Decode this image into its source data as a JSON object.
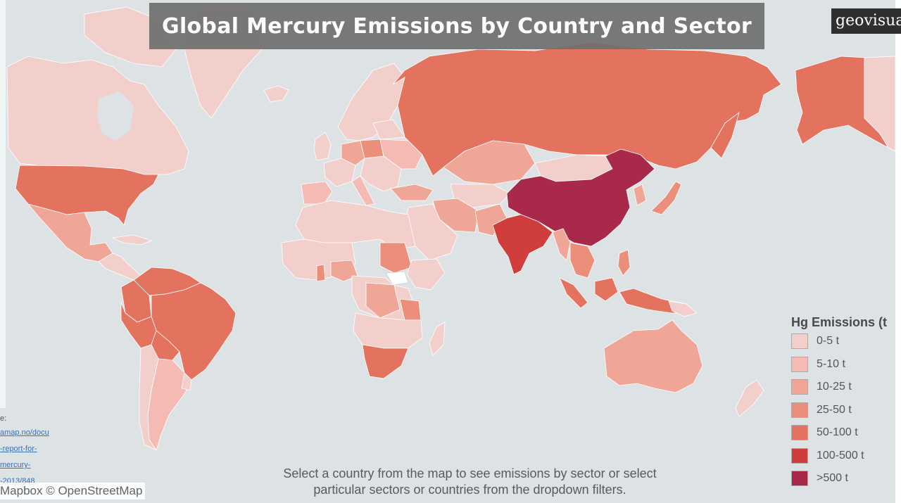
{
  "title": "Global Mercury Emissions by Country and Sector",
  "logo_text": "geovisua",
  "legend": {
    "title": "Hg Emissions (t",
    "items": [
      {
        "label": "0-5 t",
        "color": "#f2cfcb"
      },
      {
        "label": "5-10 t",
        "color": "#f5bab3"
      },
      {
        "label": "10-25 t",
        "color": "#f0a696"
      },
      {
        "label": "25-50 t",
        "color": "#ec8f7a"
      },
      {
        "label": "50-100 t",
        "color": "#e3735f"
      },
      {
        "label": "100-500 t",
        "color": "#cf3d3c"
      },
      {
        "label": ">500 t",
        "color": "#a9294b"
      }
    ]
  },
  "instructions": {
    "line1": "Select a country from the map to see emissions by sector or select",
    "line2": "particular sectors or countries from the dropdown filters."
  },
  "attribution": "Mapbox © OpenStreetMap",
  "source": {
    "label": "e:",
    "links": [
      "amap.no/docu",
      "-report-for-",
      "mercury-",
      "-2013/848"
    ]
  },
  "colors": {
    "ocean": "#dde3e5",
    "title_bg": "#6f6f6f",
    "country_border": "#ffffff",
    "no_data": "#ffffff"
  }
}
